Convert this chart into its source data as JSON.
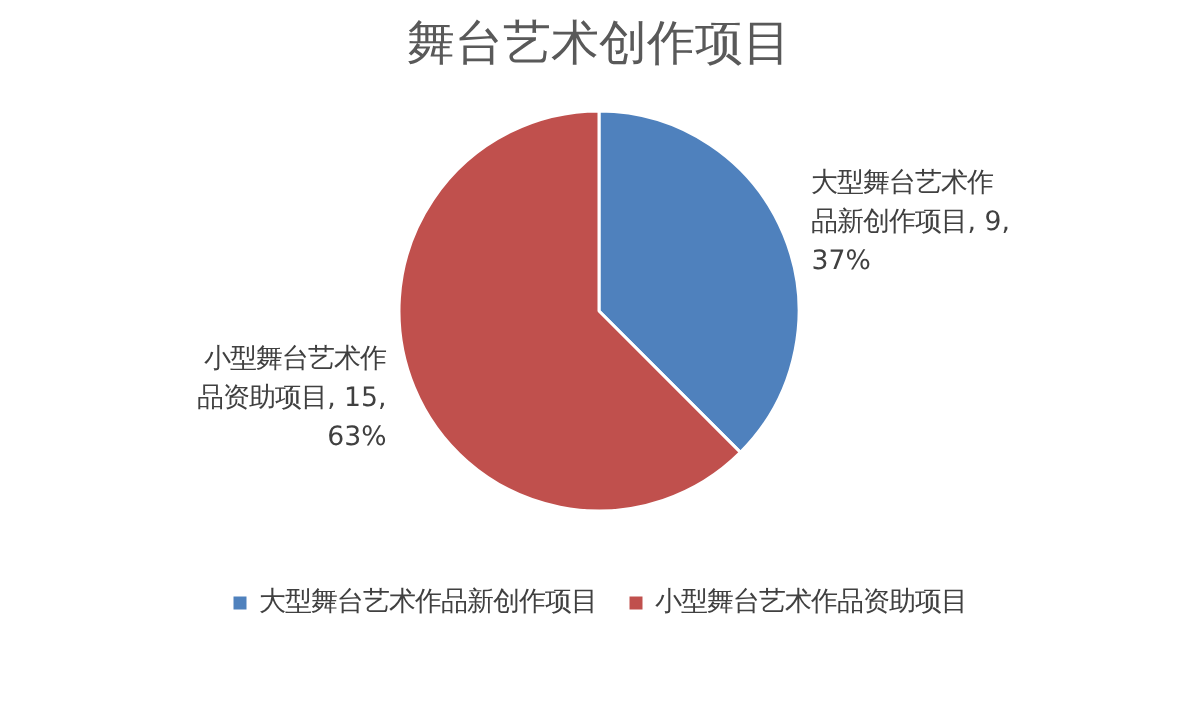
{
  "chart_data": {
    "type": "pie",
    "title": "舞台艺术创作项目",
    "categories": [
      "大型舞台艺术作品新创作项目",
      "小型舞台艺术作品资助项目"
    ],
    "values": [
      9,
      15
    ],
    "colors": [
      "#4f81bd",
      "#c0504d"
    ],
    "value_labels": [
      "大型舞台艺术作品新创作项目, 9, 37%",
      "小型舞台艺术作品资助项目, 15, 63%"
    ],
    "legend": "bottom"
  }
}
